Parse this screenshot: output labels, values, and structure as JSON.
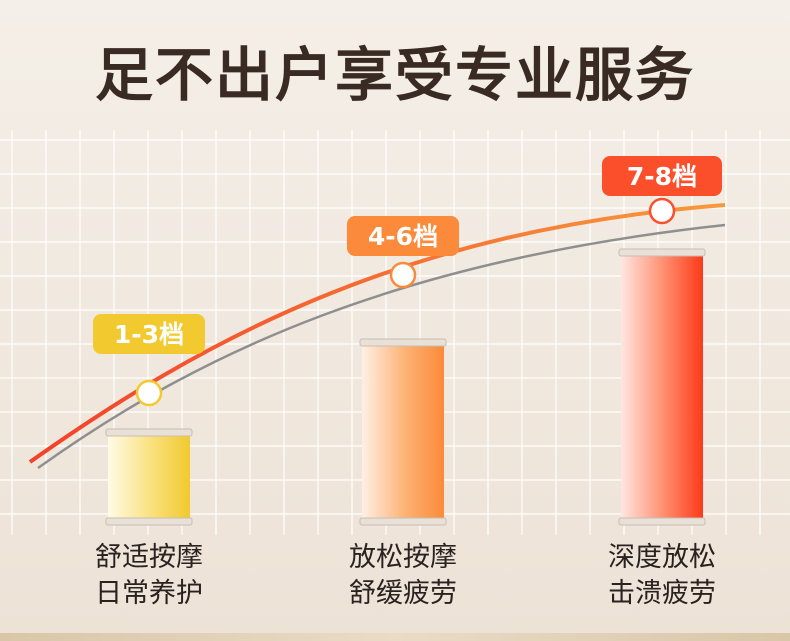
{
  "title": "足不出户享受专业服务",
  "colors": {
    "level_low": "#f2c92e",
    "level_mid": "#fb8a3a",
    "level_high": "#fb4f2b",
    "curve_main": "#fb6a2a",
    "curve_shadow": "#8f8f8f",
    "text_dark": "#3a2a24"
  },
  "chart_data": {
    "type": "bar",
    "categories": [
      "舒适按摩 日常养护",
      "放松按摩 舒缓疲劳",
      "深度放松 击溃疲劳"
    ],
    "values": [
      1,
      2,
      3
    ],
    "badges": [
      "1-3档",
      "4-6档",
      "7-8档"
    ],
    "labels": [
      [
        "舒适按摩",
        "日常养护"
      ],
      [
        "放松按摩",
        "舒缓疲劳"
      ],
      [
        "深度放松",
        "击溃疲劳"
      ]
    ],
    "ylim": [
      0,
      3
    ],
    "grid": true,
    "trend_line": true
  }
}
